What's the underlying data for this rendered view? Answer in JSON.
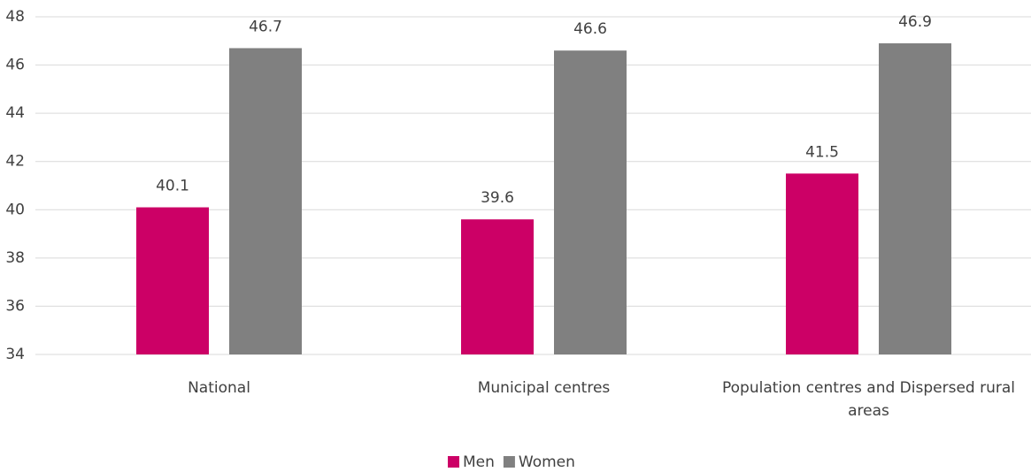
{
  "chart_data": {
    "type": "bar",
    "categories": [
      "National",
      "Municipal centres",
      "Population centres and Dispersed rural areas"
    ],
    "series": [
      {
        "name": "Men",
        "color": "#cc0066",
        "values": [
          40.1,
          39.6,
          41.5
        ]
      },
      {
        "name": "Women",
        "color": "#808080",
        "values": [
          46.7,
          46.6,
          46.9
        ]
      }
    ],
    "ylim": [
      34,
      48
    ],
    "yticks": [
      34,
      36,
      38,
      40,
      42,
      44,
      46,
      48
    ],
    "grid": true,
    "legend": "bottom"
  }
}
